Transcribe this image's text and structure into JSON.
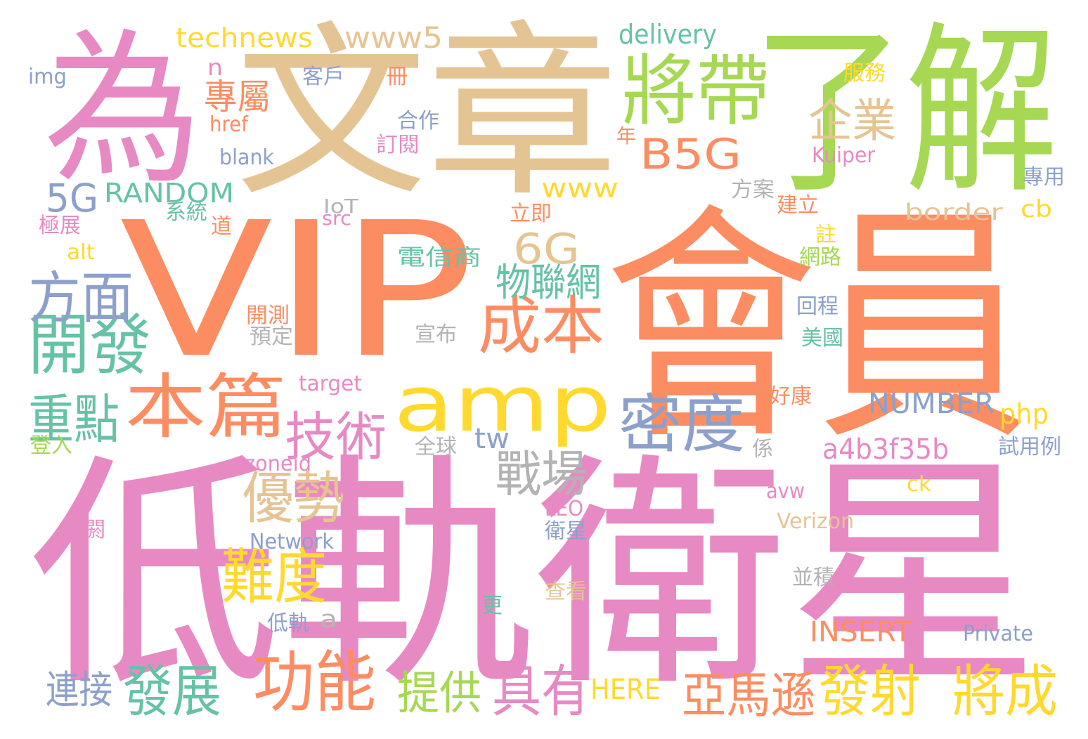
{
  "palette": {
    "pink": "#e78ac3",
    "orange": "#fc8d62",
    "tan": "#e5c494",
    "green": "#a6d854",
    "yellow": "#ffd92f",
    "blue": "#8da0cb",
    "teal": "#66c2a5",
    "gray": "#b3b3b3"
  },
  "words": [
    {
      "text": "為",
      "color": "pink"
    },
    {
      "text": "文章",
      "color": "tan"
    },
    {
      "text": "了解",
      "color": "green"
    },
    {
      "text": "VIP",
      "color": "orange"
    },
    {
      "text": "會員",
      "color": "orange"
    },
    {
      "text": "低軌衛星",
      "color": "pink"
    },
    {
      "text": "將帶",
      "color": "green"
    },
    {
      "text": "amp",
      "color": "yellow"
    },
    {
      "text": "本篇",
      "color": "orange"
    },
    {
      "text": "密度",
      "color": "blue"
    },
    {
      "text": "開發",
      "color": "teal"
    },
    {
      "text": "方面",
      "color": "blue"
    },
    {
      "text": "成本",
      "color": "orange"
    },
    {
      "text": "功能",
      "color": "orange"
    },
    {
      "text": "具有",
      "color": "pink"
    },
    {
      "text": "發展",
      "color": "teal"
    },
    {
      "text": "將成",
      "color": "yellow"
    },
    {
      "text": "發射",
      "color": "yellow"
    },
    {
      "text": "優勢",
      "color": "tan"
    },
    {
      "text": "難度",
      "color": "yellow"
    },
    {
      "text": "技術",
      "color": "pink"
    },
    {
      "text": "重點",
      "color": "teal"
    },
    {
      "text": "戰場",
      "color": "gray"
    },
    {
      "text": "亞馬遜",
      "color": "orange"
    },
    {
      "text": "提供",
      "color": "green"
    },
    {
      "text": "B5G",
      "color": "orange"
    },
    {
      "text": "6G",
      "color": "tan"
    },
    {
      "text": "企業",
      "color": "tan"
    },
    {
      "text": "物聯網",
      "color": "teal"
    },
    {
      "text": "連接",
      "color": "blue"
    },
    {
      "text": "5G",
      "color": "blue"
    },
    {
      "text": "www5",
      "color": "tan"
    },
    {
      "text": "專屬",
      "color": "orange"
    },
    {
      "text": "technews",
      "color": "yellow"
    },
    {
      "text": "delivery",
      "color": "teal"
    },
    {
      "text": "RANDOM",
      "color": "teal"
    },
    {
      "text": "www",
      "color": "yellow"
    },
    {
      "text": "a4b3f35b",
      "color": "pink"
    },
    {
      "text": "NUMBER",
      "color": "blue"
    },
    {
      "text": "INSERT",
      "color": "orange"
    },
    {
      "text": "HERE",
      "color": "yellow"
    },
    {
      "text": "php",
      "color": "yellow"
    },
    {
      "text": "tw",
      "color": "blue"
    },
    {
      "text": "a",
      "color": "gray"
    },
    {
      "text": "cb",
      "color": "yellow"
    },
    {
      "text": "border",
      "color": "tan"
    },
    {
      "text": "n",
      "color": "pink"
    },
    {
      "text": "img",
      "color": "blue"
    },
    {
      "text": "客戶",
      "color": "blue"
    },
    {
      "text": "冊",
      "color": "orange"
    },
    {
      "text": "服務",
      "color": "yellow"
    },
    {
      "text": "href",
      "color": "orange"
    },
    {
      "text": "合作",
      "color": "blue"
    },
    {
      "text": "訂閱",
      "color": "pink"
    },
    {
      "text": "年",
      "color": "orange"
    },
    {
      "text": "blank",
      "color": "blue"
    },
    {
      "text": "Kuiper",
      "color": "pink"
    },
    {
      "text": "專用",
      "color": "blue"
    },
    {
      "text": "方案",
      "color": "gray"
    },
    {
      "text": "建立",
      "color": "orange"
    },
    {
      "text": "系統",
      "color": "teal"
    },
    {
      "text": "IoT",
      "color": "gray"
    },
    {
      "text": "src",
      "color": "pink"
    },
    {
      "text": "道",
      "color": "orange"
    },
    {
      "text": "立即",
      "color": "orange"
    },
    {
      "text": "極展",
      "color": "pink"
    },
    {
      "text": "註",
      "color": "yellow"
    },
    {
      "text": "alt",
      "color": "yellow"
    },
    {
      "text": "電信商",
      "color": "teal"
    },
    {
      "text": "網路",
      "color": "green"
    },
    {
      "text": "開測",
      "color": "orange"
    },
    {
      "text": "回程",
      "color": "blue"
    },
    {
      "text": "預定",
      "color": "gray"
    },
    {
      "text": "宣布",
      "color": "gray"
    },
    {
      "text": "美國",
      "color": "teal"
    },
    {
      "text": "target",
      "color": "pink"
    },
    {
      "text": "好康",
      "color": "orange"
    },
    {
      "text": "登入",
      "color": "green"
    },
    {
      "text": "全球",
      "color": "gray"
    },
    {
      "text": "係",
      "color": "gray"
    },
    {
      "text": "試用例",
      "color": "blue"
    },
    {
      "text": "zoneid",
      "color": "pink"
    },
    {
      "text": "ck",
      "color": "yellow"
    },
    {
      "text": "avw",
      "color": "pink"
    },
    {
      "text": "LEO",
      "color": "pink"
    },
    {
      "text": "閼",
      "color": "pink"
    },
    {
      "text": "衛星",
      "color": "blue"
    },
    {
      "text": "Verizon",
      "color": "tan"
    },
    {
      "text": "Network",
      "color": "blue"
    },
    {
      "text": "並積",
      "color": "gray"
    },
    {
      "text": "查看",
      "color": "tan"
    },
    {
      "text": "更",
      "color": "teal"
    },
    {
      "text": "低軌",
      "color": "blue"
    },
    {
      "text": "Private",
      "color": "blue"
    }
  ]
}
